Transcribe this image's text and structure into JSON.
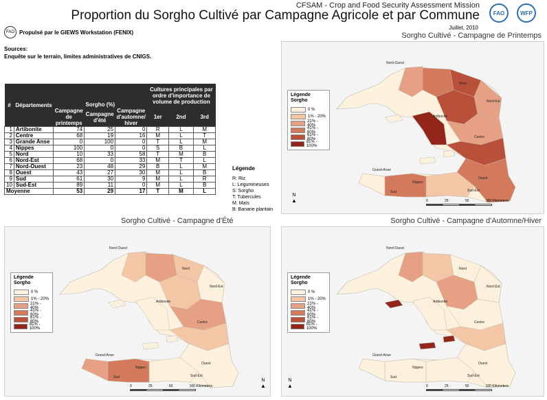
{
  "header": {
    "mission": "CFSAM - Crop and Food Security Assessment Mission",
    "title": "Proportion du Sorgho Cultivé par Campagne Agricole et par Commune",
    "date": "Juillet, 2010",
    "logo_left": "FAO",
    "logo_right": "WFP"
  },
  "powered_by": "Propulsé par le GIEWS Workstation (FENIX)",
  "sources": {
    "label": "Sources:",
    "text": "Enquête sur le terrain, limites administratives de CNIGS."
  },
  "table": {
    "h_num": "#",
    "h_dept": "Départements",
    "h_sorgho": "Sorgho (%)",
    "h_cultures": "Cultures principales par ordre d'importance de volume de production",
    "h_spring": "Campagne de printemps",
    "h_summer": "Campagne d'été",
    "h_autumn": "Campagne d'automne/ hiver",
    "h_1er": "1er",
    "h_2nd": "2nd",
    "h_3rd": "3rd",
    "rows": [
      [
        "1",
        "Artibonite",
        "74",
        "25",
        "0",
        "R",
        "L",
        "M"
      ],
      [
        "2",
        "Centre",
        "68",
        "19",
        "16",
        "M",
        "L",
        "T"
      ],
      [
        "3",
        "Grande Anse",
        "0",
        "100",
        "0",
        "T",
        "L",
        "M"
      ],
      [
        "4",
        "Nippes",
        "100",
        "0",
        "0",
        "S",
        "B",
        "L"
      ],
      [
        "5",
        "Nord",
        "10",
        "33",
        "58",
        "T",
        "M",
        "B"
      ],
      [
        "6",
        "Nord-Est",
        "68",
        "0",
        "33",
        "M",
        "T",
        "L"
      ],
      [
        "7",
        "Nord-Ouest",
        "23",
        "48",
        "29",
        "B",
        "L",
        "M"
      ],
      [
        "8",
        "Ouest",
        "43",
        "27",
        "30",
        "M",
        "L",
        "B"
      ],
      [
        "9",
        "Sud",
        "61",
        "30",
        "9",
        "M",
        "L",
        "R"
      ],
      [
        "10",
        "Sud-Est",
        "89",
        "11",
        "0",
        "M",
        "L",
        "B"
      ]
    ],
    "average": [
      "Moyenne",
      "53",
      "29",
      "17",
      "T",
      "M",
      "L"
    ]
  },
  "crop_legend": {
    "title": "Légende",
    "items": [
      "R: Riz",
      "L: Legumineuses",
      "S: Sorgho",
      "T: Tubercules",
      "M: Maïs",
      "B: Banane plantain"
    ]
  },
  "maps": [
    {
      "title": "Sorgho Cultivé - Campagne de Printemps"
    },
    {
      "title": "Sorgho Cultivé - Campagne d'Été"
    },
    {
      "title": "Sorgho Cultivé - Campagne d'Automne/Hiver"
    }
  ],
  "map_legend": {
    "title": "Légende Sorgho",
    "classes": [
      "0 %",
      "1% - 20%",
      "21% - 40%",
      "41% - 60%",
      "61% - 80%",
      "81% - 100%"
    ],
    "colors": [
      "#fbf1dc",
      "#f3c6a6",
      "#e6a184",
      "#d37a5c",
      "#b8503a",
      "#93251a"
    ]
  },
  "map_labels": {
    "nord_ouest": "Nord-Ouest",
    "nord": "Nord",
    "nord_est": "Nord-Est",
    "artibonite": "Artibonite",
    "centre": "Centre",
    "ouest": "Ouest",
    "grande_anse": "Grand-Anse",
    "nippes": "Nippes",
    "sud": "Sud",
    "sud_est": "Sud-Est"
  },
  "north_label": "N",
  "scale_labels": [
    "0",
    "25",
    "50",
    "100 Kilometers"
  ]
}
